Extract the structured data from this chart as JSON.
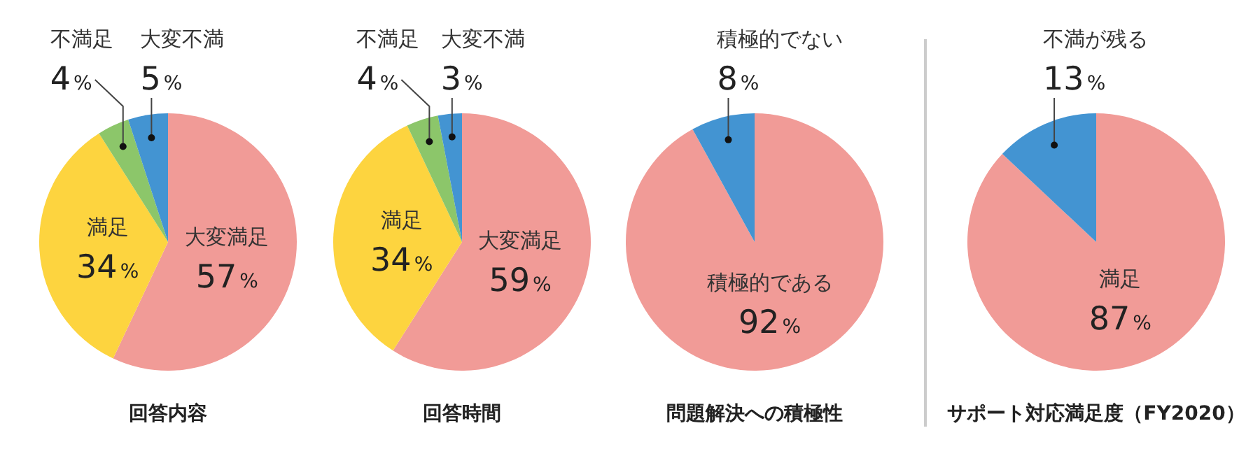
{
  "chart_data": [
    {
      "type": "pie",
      "title": "回答内容",
      "categories": [
        "大変満足",
        "満足",
        "不満足",
        "大変不満"
      ],
      "values": [
        57,
        34,
        4,
        5
      ],
      "colors": [
        "#f19b97",
        "#fdd43f",
        "#8cc66a",
        "#4394d2"
      ],
      "value_labels": [
        "57%",
        "34%",
        "4%",
        "5%"
      ]
    },
    {
      "type": "pie",
      "title": "回答時間",
      "categories": [
        "大変満足",
        "満足",
        "不満足",
        "大変不満"
      ],
      "values": [
        59,
        34,
        4,
        3
      ],
      "colors": [
        "#f19b97",
        "#fdd43f",
        "#8cc66a",
        "#4394d2"
      ],
      "value_labels": [
        "59%",
        "34%",
        "4%",
        "3%"
      ]
    },
    {
      "type": "pie",
      "title": "問題解決への積極性",
      "categories": [
        "積極的である",
        "積極的でない"
      ],
      "values": [
        92,
        8
      ],
      "colors": [
        "#f19b97",
        "#4394d2"
      ],
      "value_labels": [
        "92%",
        "8%"
      ]
    },
    {
      "type": "pie",
      "title": "サポート対応満足度（FY2020）",
      "categories": [
        "満足",
        "不満が残る"
      ],
      "values": [
        87,
        13
      ],
      "colors": [
        "#f19b97",
        "#4394d2"
      ],
      "value_labels": [
        "87%",
        "13%"
      ]
    }
  ]
}
